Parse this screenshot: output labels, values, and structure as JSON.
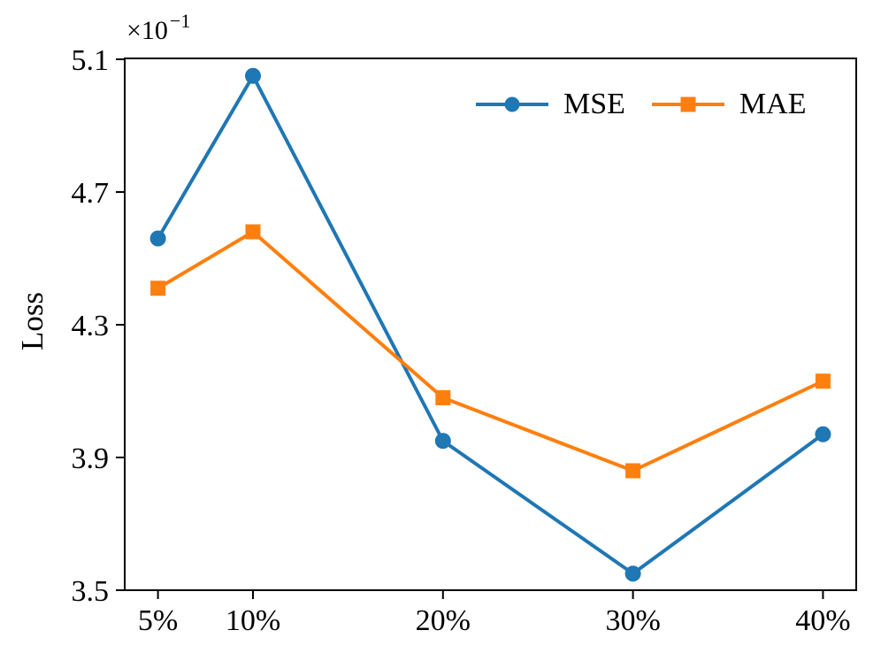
{
  "figure": {
    "background": "#ffffff",
    "text_color": "#000000"
  },
  "axis": {
    "ylabel": "Loss",
    "offset_base": "×10",
    "offset_exponent": "−1"
  },
  "chart_data": {
    "type": "line",
    "title": "",
    "xlabel": "",
    "ylabel": "Loss",
    "y_scale_note": "y values shown in units of 10^-1",
    "x": [
      5,
      10,
      20,
      30,
      40
    ],
    "x_tick_labels": [
      "5%",
      "10%",
      "20%",
      "30%",
      "40%"
    ],
    "y_ticks": [
      3.5,
      3.9,
      4.3,
      4.7,
      5.1
    ],
    "y_tick_labels": [
      "3.5",
      "3.9",
      "4.3",
      "4.7",
      "5.1"
    ],
    "xlim": [
      3.25,
      41.75
    ],
    "ylim": [
      3.5,
      5.1
    ],
    "grid": false,
    "legend_position": "upper right",
    "legend_frame": false,
    "series": [
      {
        "name": "MSE",
        "color": "#1f77b4",
        "marker": "circle",
        "values": [
          4.56,
          5.05,
          3.95,
          3.55,
          3.97
        ]
      },
      {
        "name": "MAE",
        "color": "#ff7f0e",
        "marker": "square",
        "values": [
          4.41,
          4.58,
          4.08,
          3.86,
          4.13
        ]
      }
    ]
  }
}
